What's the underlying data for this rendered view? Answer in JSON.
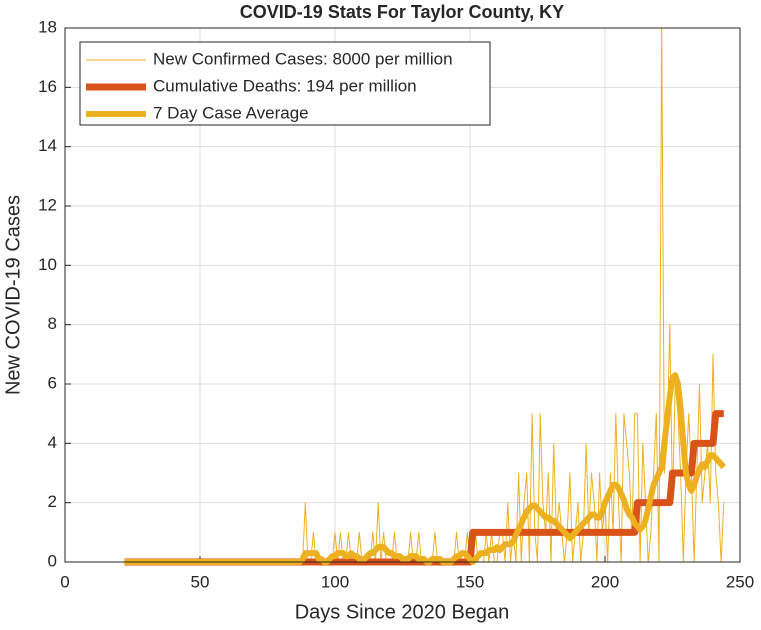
{
  "chart_data": {
    "type": "line",
    "title": "COVID-19 Stats For Taylor County, KY",
    "xlabel": "Days Since 2020 Began",
    "ylabel": "New COVID-19 Cases",
    "xlim": [
      0,
      250
    ],
    "xticks": [
      0,
      50,
      100,
      150,
      200,
      250
    ],
    "ylim": [
      0,
      18
    ],
    "yticks": [
      0,
      2,
      4,
      6,
      8,
      10,
      12,
      14,
      16,
      18
    ],
    "grid": true,
    "legend": "upper left",
    "x": [
      22,
      87,
      88,
      89,
      90,
      91,
      92,
      93,
      94,
      95,
      96,
      97,
      98,
      99,
      100,
      101,
      102,
      103,
      104,
      105,
      106,
      107,
      108,
      109,
      110,
      111,
      112,
      113,
      114,
      115,
      116,
      117,
      118,
      119,
      120,
      121,
      122,
      123,
      124,
      125,
      126,
      127,
      128,
      129,
      130,
      131,
      132,
      133,
      134,
      135,
      136,
      137,
      138,
      139,
      140,
      141,
      142,
      143,
      144,
      145,
      146,
      147,
      148,
      149,
      150,
      151,
      152,
      153,
      154,
      155,
      156,
      157,
      158,
      159,
      160,
      161,
      162,
      163,
      164,
      165,
      166,
      167,
      168,
      169,
      170,
      171,
      172,
      173,
      174,
      175,
      176,
      177,
      178,
      179,
      180,
      181,
      182,
      183,
      184,
      185,
      186,
      187,
      188,
      189,
      190,
      191,
      192,
      193,
      194,
      195,
      196,
      197,
      198,
      199,
      200,
      201,
      202,
      203,
      204,
      205,
      206,
      207,
      208,
      209,
      210,
      211,
      212,
      213,
      214,
      215,
      216,
      217,
      218,
      219,
      220,
      221,
      222,
      223,
      224,
      225,
      226,
      227,
      228,
      229,
      230,
      231,
      232,
      233,
      234,
      235,
      236,
      237,
      238,
      239,
      240,
      241,
      242,
      243,
      244
    ],
    "series": [
      {
        "name": "New Confirmed Cases: 8000 per million",
        "color": "#EDB120",
        "width": 1,
        "values": [
          0,
          0,
          0,
          2,
          0,
          0,
          1,
          0,
          0,
          0,
          0,
          0,
          0,
          0,
          1,
          0,
          1,
          0,
          0,
          1,
          0,
          0,
          0,
          1,
          0,
          0,
          0,
          0,
          1,
          0,
          2,
          0,
          1,
          0,
          0,
          0,
          1,
          0,
          0,
          0,
          0,
          0,
          1,
          0,
          0,
          1,
          0,
          0,
          0,
          0,
          0,
          1,
          0,
          0,
          0,
          0,
          0,
          0,
          0,
          1,
          0,
          0,
          0,
          1,
          0,
          0,
          1,
          0,
          0,
          0,
          1,
          0,
          1,
          0,
          0,
          1,
          1,
          0,
          2,
          0,
          1,
          0,
          3,
          0,
          2,
          3,
          0,
          5,
          1,
          0,
          5,
          2,
          1,
          3,
          0,
          4,
          1,
          2,
          1,
          0,
          1,
          3,
          0,
          1,
          2,
          0,
          1,
          4,
          1,
          3,
          2,
          0,
          3,
          1,
          2,
          0,
          3,
          1,
          5,
          2,
          0,
          5,
          4,
          3,
          1,
          5,
          5,
          0,
          4,
          2,
          0,
          1,
          3,
          5,
          0,
          18,
          3,
          4,
          8,
          2,
          6,
          5,
          3,
          0,
          3,
          5,
          3,
          0,
          3,
          6,
          2,
          3,
          4,
          2,
          7,
          3,
          2,
          0,
          2
        ]
      },
      {
        "name": "Cumulative Deaths: 194 per million",
        "color": "#D95319",
        "width": 7,
        "values": [
          0,
          0,
          0,
          0,
          0,
          0,
          0,
          0,
          0,
          0,
          0,
          0,
          0,
          0,
          0,
          0,
          0,
          0,
          0,
          0,
          0,
          0,
          0,
          0,
          0,
          0,
          0,
          0,
          0,
          0,
          0,
          0,
          0,
          0,
          0,
          0,
          0,
          0,
          0,
          0,
          0,
          0,
          0,
          0,
          0,
          0,
          0,
          0,
          0,
          0,
          0,
          0,
          0,
          0,
          0,
          0,
          0,
          0,
          0,
          0,
          0,
          0,
          0,
          0,
          0,
          1,
          1,
          1,
          1,
          1,
          1,
          1,
          1,
          1,
          1,
          1,
          1,
          1,
          1,
          1,
          1,
          1,
          1,
          1,
          1,
          1,
          1,
          1,
          1,
          1,
          1,
          1,
          1,
          1,
          1,
          1,
          1,
          1,
          1,
          1,
          1,
          1,
          1,
          1,
          1,
          1,
          1,
          1,
          1,
          1,
          1,
          1,
          1,
          1,
          1,
          1,
          1,
          1,
          1,
          1,
          1,
          1,
          1,
          1,
          1,
          1,
          2,
          2,
          2,
          2,
          2,
          2,
          2,
          2,
          2,
          2,
          2,
          2,
          2,
          3,
          3,
          3,
          3,
          3,
          3,
          3,
          3,
          4,
          4,
          4,
          4,
          4,
          4,
          4,
          4,
          5,
          5,
          5,
          5
        ]
      },
      {
        "name": "7 Day Case Average",
        "color": "#EDB120",
        "width": 6,
        "values": [
          0,
          0,
          0.1,
          0.3,
          0.3,
          0.3,
          0.3,
          0.3,
          0.1,
          0.1,
          0,
          0,
          0.1,
          0.2,
          0.2,
          0.3,
          0.3,
          0.3,
          0.2,
          0.2,
          0.3,
          0.2,
          0.2,
          0.1,
          0.1,
          0.1,
          0.2,
          0.3,
          0.3,
          0.4,
          0.5,
          0.5,
          0.5,
          0.4,
          0.3,
          0.3,
          0.2,
          0.2,
          0.2,
          0.1,
          0.1,
          0.1,
          0.2,
          0.2,
          0.2,
          0.1,
          0.1,
          0.1,
          0,
          0,
          0.1,
          0.1,
          0.1,
          0.1,
          0,
          0,
          0,
          0,
          0.1,
          0.2,
          0.2,
          0.3,
          0.3,
          0.2,
          0.1,
          0,
          0.1,
          0.2,
          0.3,
          0.3,
          0.3,
          0.4,
          0.4,
          0.4,
          0.5,
          0.4,
          0.5,
          0.6,
          0.6,
          0.6,
          0.7,
          0.9,
          1.1,
          1.3,
          1.5,
          1.7,
          1.8,
          1.9,
          1.9,
          1.8,
          1.7,
          1.6,
          1.5,
          1.5,
          1.4,
          1.4,
          1.3,
          1.2,
          1.1,
          1.0,
          0.9,
          0.8,
          0.9,
          1.0,
          1.1,
          1.2,
          1.3,
          1.4,
          1.5,
          1.6,
          1.6,
          1.5,
          1.5,
          1.7,
          2.0,
          2.2,
          2.4,
          2.6,
          2.6,
          2.5,
          2.3,
          2.1,
          1.8,
          1.6,
          1.5,
          1.3,
          1.2,
          1.1,
          1.2,
          1.4,
          1.8,
          2.2,
          2.6,
          2.8,
          3.0,
          3.2,
          4.0,
          4.8,
          5.6,
          6.2,
          6.3,
          6.0,
          5.2,
          4.0,
          3.0,
          2.6,
          2.4,
          2.6,
          2.9,
          3.1,
          3.3,
          3.2,
          3.4,
          3.6,
          3.6,
          3.5,
          3.4,
          3.3,
          3.2
        ]
      }
    ]
  }
}
